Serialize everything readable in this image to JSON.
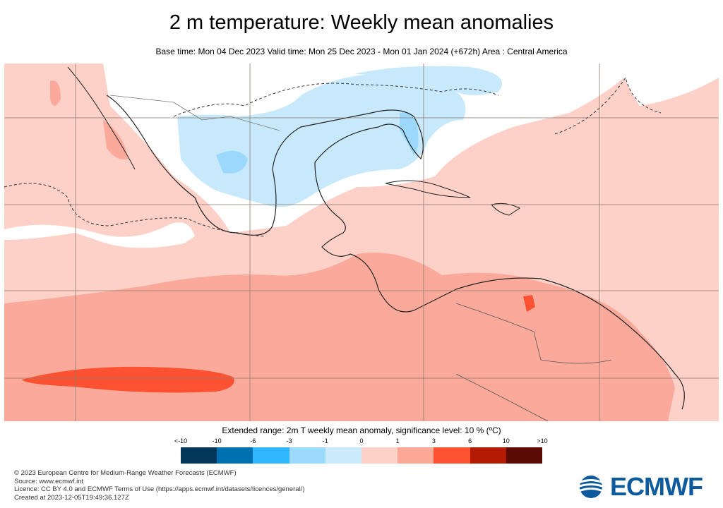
{
  "title": "2 m temperature: Weekly mean anomalies",
  "subtitle": "Base time: Mon 04 Dec 2023 Valid time: Mon 25 Dec 2023 - Mon 01 Jan 2024 (+672h) Area : Central America",
  "map": {
    "area": "Central America",
    "colors": {
      "light_pink": "#fdd0c8",
      "salmon": "#fba99a",
      "red": "#fc5232",
      "light_blue": "#c8e9fb",
      "mid_blue": "#9bd8fc",
      "grid": "#8b7d70",
      "coast": "#222222"
    }
  },
  "legend": {
    "title": "Extended range: 2m T weekly mean anomaly, significance level: 10 % (ºC)",
    "ticks": [
      "<-10",
      "-10",
      "-6",
      "-3",
      "-1",
      "0",
      "1",
      "3",
      "6",
      "10",
      ">10"
    ],
    "colors": [
      "#02375a",
      "#0071b0",
      "#30b6fd",
      "#9bd9fd",
      "#cbebfc",
      "#fdd0c8",
      "#fca897",
      "#fc5232",
      "#b31a04",
      "#5b0b04"
    ]
  },
  "footer": {
    "lines": [
      "© 2023 European Centre for Medium-Range Weather Forecasts (ECMWF)",
      "Source: www.ecmwf.int",
      "Licence: CC BY 4.0 and ECMWF Terms of Use (https://apps.ecmwf.int/datasets/licences/general/)",
      "Created at 2023-12-05T19:49:36.127Z"
    ],
    "logo_text": "ECMWF"
  }
}
